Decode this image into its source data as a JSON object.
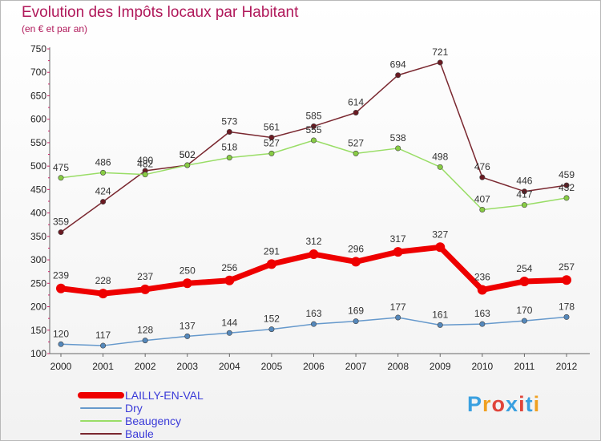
{
  "header": {
    "title": "Evolution des Impôts locaux par Habitant",
    "subtitle": "(en € et par an)"
  },
  "brand": {
    "text": "Proxiti",
    "letter_colors": [
      "#3aa0e0",
      "#f0a020",
      "#e0443a",
      "#3aa0e0",
      "#e0443a",
      "#3aa0e0",
      "#f0a020"
    ]
  },
  "chart_data": {
    "type": "line",
    "x": [
      "2000",
      "2001",
      "2002",
      "2003",
      "2004",
      "2005",
      "2006",
      "2007",
      "2008",
      "2009",
      "2010",
      "2011",
      "2012"
    ],
    "ylim": [
      100,
      750
    ],
    "yticks": [
      100,
      150,
      200,
      250,
      300,
      350,
      400,
      450,
      500,
      550,
      600,
      650,
      700,
      750
    ],
    "grid": false,
    "legend": "bottom-left",
    "series": [
      {
        "name": "Baule",
        "color": "#7a2830",
        "marker": "#6a1a22",
        "values": [
          359,
          424,
          490,
          502,
          573,
          561,
          585,
          614,
          694,
          721,
          476,
          446,
          459
        ]
      },
      {
        "name": "Beaugency",
        "color": "#99dd66",
        "marker": "#88cc44",
        "values": [
          475,
          486,
          482,
          502,
          518,
          527,
          555,
          527,
          538,
          498,
          407,
          417,
          432
        ]
      },
      {
        "name": "Dry",
        "color": "#6699cc",
        "marker": "#5588bb",
        "values": [
          120,
          117,
          128,
          137,
          144,
          152,
          163,
          169,
          177,
          161,
          163,
          170,
          178
        ]
      },
      {
        "name": "LAILLY-EN-VAL",
        "color": "#ee0000",
        "marker": "#ee0000",
        "values": [
          239,
          228,
          237,
          250,
          256,
          291,
          312,
          296,
          317,
          327,
          236,
          254,
          257
        ]
      }
    ],
    "legend_order": [
      "LAILLY-EN-VAL",
      "Dry",
      "Beaugency",
      "Baule"
    ]
  }
}
